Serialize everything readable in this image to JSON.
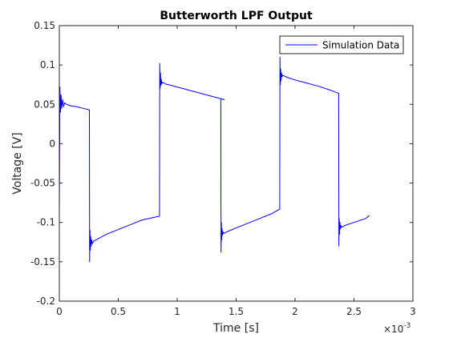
{
  "chart_data": {
    "type": "line",
    "title": "Butterworth LPF Output",
    "xlabel": "Time [s]",
    "ylabel": "Voltage [V]",
    "x_exponent_label": "×10",
    "x_exponent_power": "-3",
    "xlim": [
      0,
      0.003
    ],
    "ylim": [
      -0.2,
      0.15
    ],
    "x_ticks": [
      0,
      0.0005,
      0.001,
      0.0015,
      0.002,
      0.0025,
      0.003
    ],
    "x_tick_labels": [
      "0",
      "0.5",
      "1",
      "1.5",
      "2",
      "2.5",
      "3"
    ],
    "y_ticks": [
      -0.2,
      -0.15,
      -0.1,
      -0.05,
      0,
      0.05,
      0.1,
      0.15
    ],
    "y_tick_labels": [
      "-0.2",
      "-0.15",
      "-0.1",
      "-0.05",
      "0",
      "0.05",
      "0.1",
      "0.15"
    ],
    "legend": {
      "location": "top-right",
      "entries": [
        "Simulation Data"
      ]
    },
    "grid": false,
    "series": [
      {
        "name": "Simulation Data",
        "color": "#0000ff",
        "x": [
          0,
          5e-06,
          1e-05,
          1.5e-05,
          2e-05,
          2.8e-05,
          3.6e-05,
          4.5e-05,
          6e-05,
          8e-05,
          0.0001,
          0.00015,
          0.0002,
          0.000255,
          0.000257,
          0.00026,
          0.000263,
          0.000266,
          0.00027,
          0.000275,
          0.00028,
          0.00029,
          0.0003,
          0.0004,
          0.0005,
          0.0006,
          0.0007,
          0.00085,
          0.000852,
          0.000855,
          0.000858,
          0.000861,
          0.000865,
          0.00087,
          0.000875,
          0.00089,
          0.0009,
          0.001,
          0.0011,
          0.0012,
          0.0013,
          0.0014,
          0.00137,
          0.001372,
          0.001375,
          0.001378,
          0.001381,
          0.001385,
          0.00139,
          0.001395,
          0.00141,
          0.00142,
          0.0015,
          0.0016,
          0.0017,
          0.0018,
          0.00187,
          0.001872,
          0.001875,
          0.001878,
          0.001881,
          0.001885,
          0.00189,
          0.001895,
          0.00191,
          0.00192,
          0.002,
          0.0021,
          0.0022,
          0.0023,
          0.00237,
          0.002372,
          0.002375,
          0.002378,
          0.002381,
          0.002385,
          0.00239,
          0.002395,
          0.00241,
          0.00242,
          0.0025,
          0.0026,
          0.00263
        ],
        "y": [
          -0.09,
          0.072,
          0.04,
          0.062,
          0.045,
          0.056,
          0.047,
          0.052,
          0.05,
          0.049,
          0.048,
          0.047,
          0.045,
          0.043,
          -0.15,
          -0.11,
          -0.135,
          -0.118,
          -0.13,
          -0.122,
          -0.127,
          -0.124,
          -0.123,
          -0.115,
          -0.109,
          -0.103,
          -0.097,
          -0.092,
          0.102,
          0.07,
          0.09,
          0.074,
          0.082,
          0.076,
          0.078,
          0.077,
          0.076,
          0.072,
          0.068,
          0.064,
          0.06,
          0.056,
          0.057,
          -0.138,
          -0.1,
          -0.122,
          -0.108,
          -0.116,
          -0.112,
          -0.114,
          -0.113,
          -0.112,
          -0.107,
          -0.101,
          -0.095,
          -0.089,
          -0.083,
          0.11,
          0.075,
          0.095,
          0.08,
          0.09,
          0.085,
          0.087,
          0.086,
          0.085,
          0.081,
          0.077,
          0.073,
          0.068,
          0.064,
          -0.13,
          -0.095,
          -0.115,
          -0.1,
          -0.108,
          -0.104,
          -0.106,
          -0.105,
          -0.104,
          -0.1,
          -0.095,
          -0.091
        ]
      }
    ]
  }
}
